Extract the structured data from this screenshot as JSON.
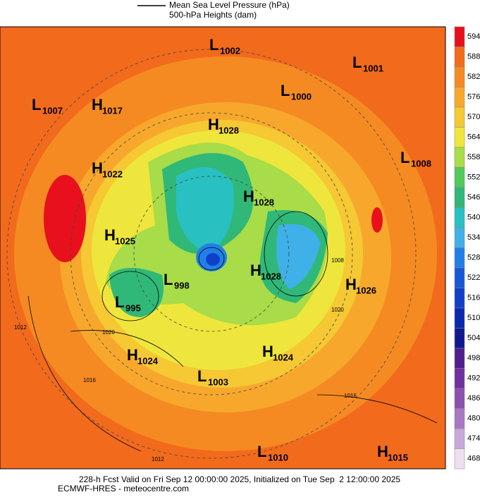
{
  "legend": {
    "items": [
      "Mean Sea Level Pressure (hPa)",
      "500-hPa Heights (dam)"
    ]
  },
  "pressure_centers": [
    {
      "letter": "L",
      "value": "1002"
    },
    {
      "letter": "L",
      "value": "1001"
    },
    {
      "letter": "L",
      "value": "1000"
    },
    {
      "letter": "L",
      "value": "1007"
    },
    {
      "letter": "H",
      "value": "1017"
    },
    {
      "letter": "H",
      "value": "1028"
    },
    {
      "letter": "L",
      "value": "1008"
    },
    {
      "letter": "H",
      "value": "1022"
    },
    {
      "letter": "H",
      "value": "1028"
    },
    {
      "letter": "H",
      "value": "1025"
    },
    {
      "letter": "H",
      "value": "1028"
    },
    {
      "letter": "L",
      "value": "998"
    },
    {
      "letter": "H",
      "value": "1026"
    },
    {
      "letter": "L",
      "value": "995"
    },
    {
      "letter": "H",
      "value": "1024"
    },
    {
      "letter": "H",
      "value": "1024"
    },
    {
      "letter": "L",
      "value": "1003"
    },
    {
      "letter": "L",
      "value": "1010"
    },
    {
      "letter": "H",
      "value": "1015"
    }
  ],
  "contour_labels": [
    "1012",
    "1020",
    "1016",
    "1012",
    "1020",
    "1016",
    "1008"
  ],
  "colorbar": {
    "ticks": [
      594,
      588,
      582,
      576,
      570,
      564,
      558,
      552,
      546,
      540,
      534,
      528,
      522,
      516,
      510,
      504,
      498,
      492,
      486,
      480,
      474,
      468
    ],
    "colors": [
      "#e8101c",
      "#f26a1c",
      "#f58a22",
      "#f7a82c",
      "#f5c834",
      "#eee63c",
      "#a8dc48",
      "#50c85a",
      "#30b878",
      "#28c0c0",
      "#40b0e8",
      "#2080e8",
      "#1858d8",
      "#1040c8",
      "#0a28b0",
      "#101890",
      "#50208c",
      "#7030a0",
      "#8c50b0",
      "#a878c0",
      "#c8a8d8",
      "#ece0f0"
    ]
  },
  "footer": [
    "228-h Fcst Valid on Fri Sep 12 00:00:00 2025, Initialized on Tue Sep  2 12:00:00 2025",
    "ECMWF-HRES - meteocentre.com"
  ]
}
